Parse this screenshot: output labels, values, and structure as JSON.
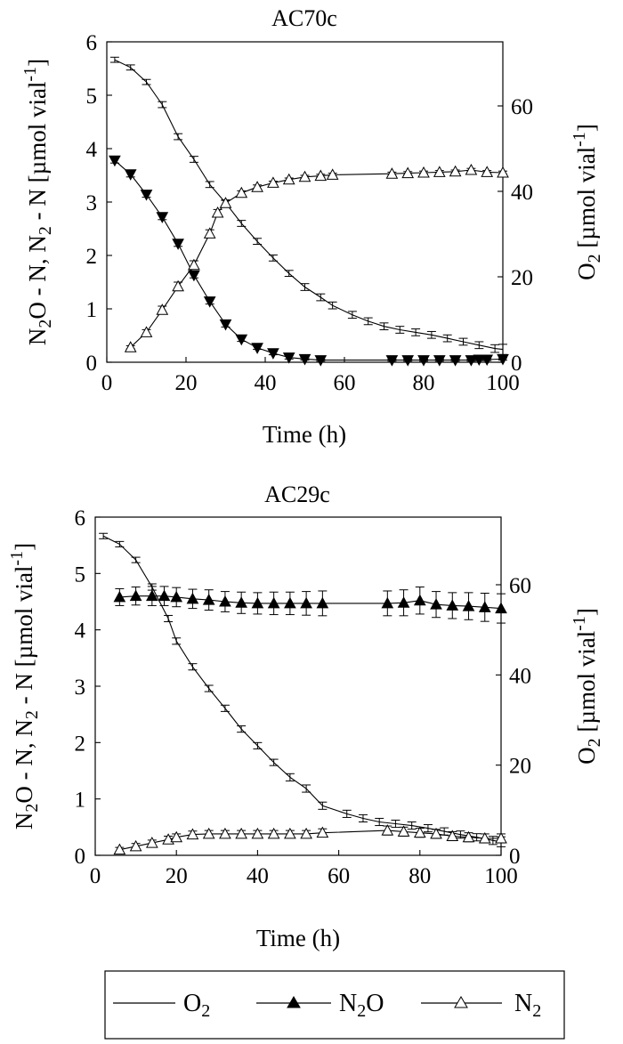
{
  "legend": {
    "o2_label": "O",
    "o2_sub": "2",
    "n2o_label_a": "N",
    "n2o_sub": "2",
    "n2o_label_b": "O",
    "n2_label": "N",
    "n2_sub": "2"
  },
  "chart_data": [
    {
      "type": "line",
      "title": "AC70c",
      "xlabel": "Time (h)",
      "ylabel": "N2O - N, N2 - N [µmol vial-1]",
      "ylabel_right": "O2 [µmol vial-1]",
      "xlim": [
        0,
        100
      ],
      "ylim": [
        0,
        6
      ],
      "ylim_right": [
        0,
        75
      ],
      "x_ticks": [
        "0",
        "20",
        "40",
        "60",
        "80",
        "100"
      ],
      "y_ticks": [
        "0",
        "1",
        "2",
        "3",
        "4",
        "5",
        "6"
      ],
      "y_ticks_right": [
        "0",
        "20",
        "40",
        "60"
      ],
      "series": [
        {
          "name": "O2",
          "axis": "right",
          "marker": "none",
          "x": [
            2,
            6,
            10,
            14,
            18,
            22,
            26,
            30,
            34,
            38,
            42,
            46,
            50,
            54,
            57,
            62,
            66,
            70,
            74,
            78,
            82,
            86,
            90,
            94,
            98,
            100
          ],
          "y": [
            70.8,
            69.0,
            65.6,
            60.3,
            52.8,
            47.5,
            41.6,
            37.3,
            32.5,
            28.3,
            24.4,
            20.8,
            17.6,
            15.2,
            13.3,
            11.1,
            9.6,
            8.4,
            7.6,
            7.0,
            6.4,
            5.6,
            4.8,
            4.0,
            3.2,
            3.0
          ],
          "error": [
            0.6,
            0.6,
            0.6,
            0.7,
            0.7,
            0.7,
            0.7,
            0.7,
            0.7,
            0.7,
            0.7,
            0.7,
            0.8,
            0.8,
            0.8,
            0.8,
            0.8,
            0.8,
            0.8,
            0.8,
            0.8,
            0.8,
            0.8,
            0.8,
            0.9,
            1.2
          ]
        },
        {
          "name": "N2O",
          "axis": "left",
          "marker": "filled-triangle-down",
          "x": [
            2,
            6,
            10,
            14,
            18,
            22,
            26,
            30,
            34,
            38,
            42,
            46,
            50,
            54,
            72,
            76,
            80,
            84,
            88,
            92,
            94,
            96,
            100
          ],
          "y": [
            3.78,
            3.52,
            3.14,
            2.72,
            2.22,
            1.63,
            1.14,
            0.71,
            0.43,
            0.27,
            0.17,
            0.09,
            0.06,
            0.04,
            0.04,
            0.04,
            0.04,
            0.04,
            0.04,
            0.04,
            0.05,
            0.05,
            0.06
          ],
          "error": [
            0.05,
            0.05,
            0.05,
            0.05,
            0.05,
            0.05,
            0.05,
            0.05,
            0.04,
            0.03,
            0.03,
            0.03,
            0.02,
            0.02,
            0.02,
            0.02,
            0.02,
            0.02,
            0.02,
            0.02,
            0.02,
            0.02,
            0.02
          ]
        },
        {
          "name": "N2",
          "axis": "left",
          "marker": "open-triangle-up",
          "x": [
            6,
            10,
            14,
            18,
            22,
            26,
            28,
            30,
            34,
            38,
            42,
            46,
            50,
            54,
            57,
            72,
            76,
            80,
            84,
            88,
            92,
            96,
            100
          ],
          "y": [
            0.28,
            0.56,
            0.98,
            1.42,
            1.82,
            2.41,
            2.8,
            2.98,
            3.17,
            3.28,
            3.36,
            3.42,
            3.47,
            3.49,
            3.51,
            3.53,
            3.54,
            3.55,
            3.56,
            3.57,
            3.6,
            3.56,
            3.55
          ],
          "error": [
            0.03,
            0.05,
            0.07,
            0.08,
            0.08,
            0.07,
            0.06,
            0.05,
            0.04,
            0.04,
            0.03,
            0.03,
            0.03,
            0.03,
            0.03,
            0.03,
            0.03,
            0.03,
            0.03,
            0.03,
            0.03,
            0.03,
            0.03
          ]
        }
      ]
    },
    {
      "type": "line",
      "title": "AC29c",
      "xlabel": "Time (h)",
      "ylabel": "N2O - N, N2 - N [µmol vial-1]",
      "ylabel_right": "O2 [µmol vial-1]",
      "xlim": [
        0,
        100
      ],
      "ylim": [
        0,
        6
      ],
      "ylim_right": [
        0,
        75
      ],
      "x_ticks": [
        "0",
        "20",
        "40",
        "60",
        "80",
        "100"
      ],
      "y_ticks": [
        "0",
        "1",
        "2",
        "3",
        "4",
        "5",
        "6"
      ],
      "y_ticks_right": [
        "0",
        "20",
        "40",
        "60"
      ],
      "series": [
        {
          "name": "O2",
          "axis": "right",
          "marker": "none",
          "x": [
            2,
            6,
            10,
            14,
            18,
            20,
            24,
            28,
            32,
            36,
            40,
            44,
            48,
            52,
            56,
            62,
            66,
            70,
            74,
            78,
            82,
            86,
            90,
            94,
            98,
            100
          ],
          "y": [
            70.8,
            69.0,
            65.5,
            59.5,
            52.5,
            47.5,
            41.8,
            37.0,
            32.6,
            28.0,
            24.3,
            20.6,
            17.3,
            14.8,
            11.0,
            9.2,
            8.2,
            7.4,
            7.0,
            6.6,
            6.0,
            5.3,
            4.6,
            4.0,
            3.3,
            3.0
          ],
          "error": [
            0.6,
            0.6,
            0.6,
            0.7,
            0.7,
            0.7,
            0.7,
            0.7,
            0.7,
            0.7,
            0.7,
            0.7,
            0.8,
            0.8,
            0.8,
            0.8,
            0.8,
            0.8,
            0.8,
            0.8,
            0.8,
            0.8,
            0.8,
            0.8,
            0.9,
            1.1
          ]
        },
        {
          "name": "N2O",
          "axis": "left",
          "marker": "filled-triangle-up",
          "x": [
            6,
            10,
            14,
            17,
            20,
            24,
            28,
            32,
            36,
            40,
            44,
            48,
            52,
            56,
            72,
            76,
            80,
            84,
            88,
            92,
            96,
            100
          ],
          "y": [
            4.58,
            4.6,
            4.6,
            4.6,
            4.58,
            4.55,
            4.53,
            4.5,
            4.48,
            4.47,
            4.47,
            4.47,
            4.47,
            4.47,
            4.47,
            4.48,
            4.52,
            4.45,
            4.43,
            4.42,
            4.4,
            4.38
          ],
          "error": [
            0.15,
            0.16,
            0.17,
            0.17,
            0.17,
            0.17,
            0.18,
            0.18,
            0.19,
            0.19,
            0.2,
            0.2,
            0.21,
            0.22,
            0.22,
            0.23,
            0.24,
            0.23,
            0.23,
            0.24,
            0.25,
            0.26
          ]
        },
        {
          "name": "N2",
          "axis": "left",
          "marker": "open-triangle-up",
          "x": [
            6,
            10,
            14,
            18,
            20,
            24,
            28,
            32,
            36,
            40,
            44,
            48,
            52,
            56,
            72,
            76,
            80,
            84,
            88,
            92,
            96,
            100
          ],
          "y": [
            0.1,
            0.16,
            0.22,
            0.28,
            0.32,
            0.37,
            0.38,
            0.38,
            0.38,
            0.38,
            0.38,
            0.38,
            0.38,
            0.4,
            0.44,
            0.42,
            0.4,
            0.38,
            0.34,
            0.32,
            0.3,
            0.3
          ],
          "error": [
            0.04,
            0.05,
            0.05,
            0.06,
            0.06,
            0.06,
            0.06,
            0.06,
            0.06,
            0.06,
            0.06,
            0.06,
            0.06,
            0.07,
            0.08,
            0.08,
            0.08,
            0.08,
            0.08,
            0.08,
            0.08,
            0.08
          ]
        }
      ]
    }
  ]
}
